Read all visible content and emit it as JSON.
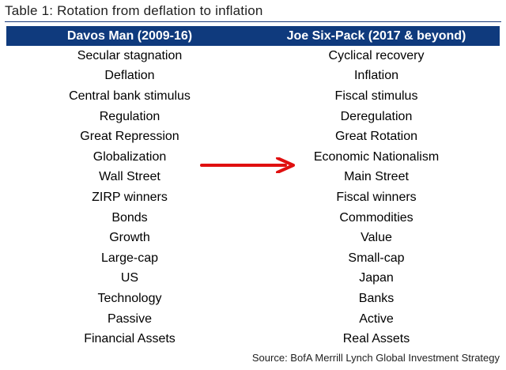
{
  "title": "Table 1:  Rotation from deflation to inflation",
  "header": {
    "left": "Davos Man (2009-16)",
    "right": "Joe Six-Pack (2017 & beyond)"
  },
  "rows": [
    {
      "left": "Secular stagnation",
      "right": "Cyclical recovery"
    },
    {
      "left": "Deflation",
      "right": "Inflation"
    },
    {
      "left": "Central bank stimulus",
      "right": "Fiscal stimulus"
    },
    {
      "left": "Regulation",
      "right": "Deregulation"
    },
    {
      "left": "Great Repression",
      "right": "Great Rotation"
    },
    {
      "left": "Globalization",
      "right": "Economic Nationalism"
    },
    {
      "left": "Wall Street",
      "right": "Main Street"
    },
    {
      "left": "ZIRP winners",
      "right": "Fiscal winners"
    },
    {
      "left": "Bonds",
      "right": "Commodities"
    },
    {
      "left": "Growth",
      "right": "Value"
    },
    {
      "left": "Large-cap",
      "right": "Small-cap"
    },
    {
      "left": "US",
      "right": "Japan"
    },
    {
      "left": "Technology",
      "right": "Banks"
    },
    {
      "left": "Passive",
      "right": "Active"
    },
    {
      "left": "Financial Assets",
      "right": "Real Assets"
    }
  ],
  "source": "Source:  BofA Merrill Lynch Global Investment Strategy",
  "colors": {
    "header_bg": "#0f3a7d",
    "header_text": "#ffffff",
    "arrow": "#e01010"
  },
  "icons": {
    "arrow": "right-arrow-icon"
  }
}
